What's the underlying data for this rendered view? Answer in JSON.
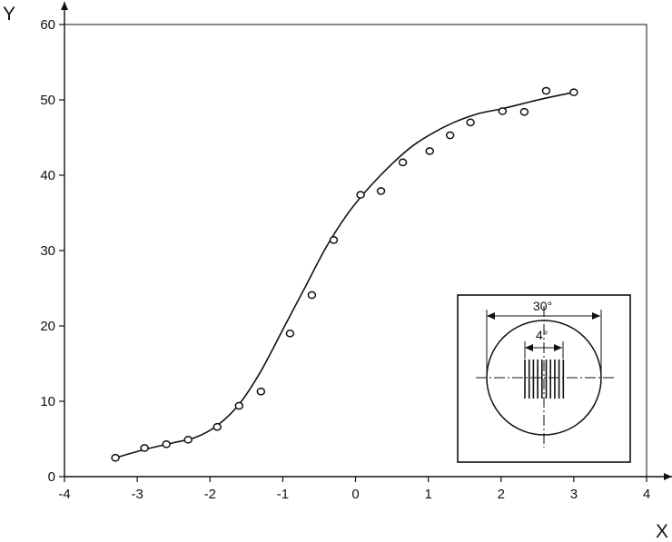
{
  "chart_data": {
    "type": "scatter",
    "title": "",
    "xlabel": "X",
    "ylabel": "Y",
    "xlim": [
      -4,
      4
    ],
    "ylim": [
      0,
      60
    ],
    "xticks": [
      "-4",
      "-3",
      "-2",
      "-1",
      "0",
      "1",
      "2",
      "3",
      "4"
    ],
    "yticks": [
      "0",
      "10",
      "20",
      "30",
      "40",
      "50",
      "60"
    ],
    "grid": false,
    "series": [
      {
        "x": [
          -3.3,
          -2.9,
          -2.6,
          -2.3,
          -1.9,
          -1.6,
          -1.3,
          -0.9,
          -0.6,
          -0.3,
          0.07,
          0.35,
          0.65,
          1.02,
          1.3,
          1.58,
          2.02,
          2.32,
          2.62,
          3.0
        ],
        "y": [
          2.5,
          3.8,
          4.3,
          4.9,
          6.6,
          9.4,
          11.3,
          19.0,
          24.1,
          31.4,
          37.4,
          37.9,
          41.7,
          43.2,
          45.3,
          47.0,
          48.5,
          48.4,
          51.2,
          51.0
        ]
      }
    ],
    "fit_curve": {
      "x": [
        -3.3,
        -2.9,
        -2.5,
        -2.2,
        -1.9,
        -1.6,
        -1.3,
        -1.0,
        -0.7,
        -0.4,
        -0.1,
        0.2,
        0.5,
        0.8,
        1.1,
        1.4,
        1.7,
        2.0,
        2.3,
        2.6,
        3.0
      ],
      "y": [
        2.5,
        3.6,
        4.5,
        5.2,
        6.8,
        9.6,
        14.0,
        19.5,
        25.0,
        30.5,
        35.0,
        38.5,
        41.5,
        44.0,
        45.8,
        47.2,
        48.2,
        48.8,
        49.5,
        50.2,
        51.0
      ]
    },
    "inset": {
      "outer_angle_label": "30°",
      "inner_angle_label": "4°"
    }
  }
}
